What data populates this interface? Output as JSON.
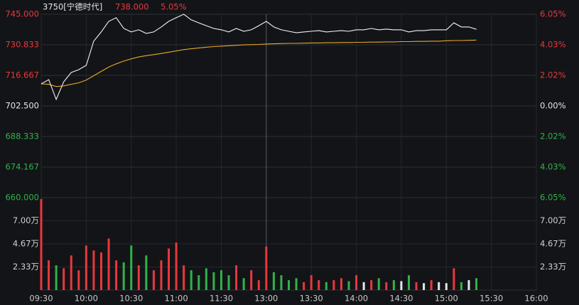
{
  "chart_data": {
    "type": "intraday",
    "title": "3750[宁德时代]",
    "price_text": "738.000",
    "change_text": "5.05%",
    "grid": true,
    "up_color": "#e8383d",
    "down_color": "#2fb34a",
    "flat_color": "#e6e6e6",
    "time_ticks": [
      "09:30",
      "10:00",
      "10:30",
      "11:00",
      "11:30",
      "13:00",
      "13:30",
      "14:00",
      "14:30",
      "15:00",
      "15:30",
      "16:00"
    ],
    "x": [
      "09:30",
      "09:35",
      "09:40",
      "09:45",
      "09:50",
      "09:55",
      "10:00",
      "10:05",
      "10:10",
      "10:15",
      "10:20",
      "10:25",
      "10:30",
      "10:35",
      "10:40",
      "10:45",
      "10:50",
      "10:55",
      "11:00",
      "11:05",
      "11:10",
      "11:15",
      "11:20",
      "11:25",
      "11:30",
      "11:45",
      "12:00",
      "12:15",
      "12:30",
      "12:45",
      "13:00",
      "13:05",
      "13:10",
      "13:15",
      "13:20",
      "13:25",
      "13:30",
      "13:35",
      "13:40",
      "13:45",
      "13:50",
      "13:55",
      "14:00",
      "14:05",
      "14:10",
      "14:15",
      "14:20",
      "14:25",
      "14:30",
      "14:35",
      "14:40",
      "14:45",
      "14:50",
      "14:55",
      "15:00",
      "15:05",
      "15:10",
      "15:15",
      "15:20"
    ],
    "price": {
      "color": "#f2f2f2",
      "values": [
        712.7,
        714.7,
        705.5,
        713.7,
        718.0,
        719.3,
        721.3,
        732.5,
        736.8,
        741.7,
        743.4,
        738.4,
        736.8,
        737.8,
        736.1,
        736.8,
        739.1,
        741.7,
        743.4,
        745.0,
        742.4,
        741.0,
        739.7,
        738.4,
        737.8,
        736.8,
        738.4,
        737.1,
        737.8,
        739.7,
        741.7,
        739.1,
        737.8,
        737.1,
        736.4,
        736.8,
        737.1,
        737.4,
        736.8,
        737.1,
        737.4,
        737.1,
        737.8,
        737.8,
        738.4,
        737.8,
        738.1,
        737.8,
        737.8,
        736.8,
        737.4,
        737.4,
        737.8,
        737.8,
        737.8,
        741.0,
        739.1,
        739.1,
        738.0
      ]
    },
    "average": {
      "color": "#e6a82a",
      "values": [
        712.7,
        712.5,
        711.5,
        711.8,
        712.5,
        713.2,
        714.5,
        716.5,
        718.5,
        720.5,
        722.0,
        723.3,
        724.3,
        725.2,
        725.8,
        726.3,
        726.8,
        727.4,
        728.0,
        728.6,
        729.0,
        729.4,
        729.7,
        730.0,
        730.2,
        730.4,
        730.6,
        730.8,
        730.9,
        731.0,
        731.2,
        731.3,
        731.4,
        731.5,
        731.5,
        731.6,
        731.7,
        731.7,
        731.8,
        731.8,
        731.9,
        731.9,
        732.0,
        732.0,
        732.1,
        732.1,
        732.2,
        732.2,
        732.3,
        732.3,
        732.4,
        732.4,
        732.5,
        732.5,
        732.7,
        732.8,
        732.8,
        732.9,
        733.0
      ]
    },
    "ylim": [
      660,
      745
    ],
    "yticks": [
      {
        "value": 745,
        "label": "745.000"
      },
      {
        "value": 730.833,
        "label": "730.833"
      },
      {
        "value": 716.667,
        "label": "716.667"
      },
      {
        "value": 702.5,
        "label": "702.500"
      },
      {
        "value": 688.333,
        "label": "688.333"
      },
      {
        "value": 674.167,
        "label": "674.167"
      },
      {
        "value": 660,
        "label": "660.000"
      }
    ],
    "y2lim": [
      -6.05,
      6.05
    ],
    "y2ticks": [
      {
        "value": 6.05,
        "label": "6.05%"
      },
      {
        "value": 4.03,
        "label": "4.03%"
      },
      {
        "value": 2.02,
        "label": "2.02%"
      },
      {
        "value": 0,
        "label": "0.00%"
      },
      {
        "value": -2.02,
        "label": "2.02%"
      },
      {
        "value": -4.03,
        "label": "4.03%"
      },
      {
        "value": -6.05,
        "label": "6.05%"
      }
    ],
    "volume": {
      "values": [
        92000,
        30000,
        25000,
        22000,
        35000,
        20000,
        45000,
        40000,
        38000,
        52000,
        30000,
        28000,
        45000,
        25000,
        35000,
        20000,
        30000,
        42000,
        48000,
        25000,
        20000,
        15000,
        22000,
        18000,
        20000,
        15000,
        25000,
        12000,
        20000,
        10000,
        44000,
        18000,
        15000,
        10000,
        12000,
        8000,
        15000,
        10000,
        8000,
        10000,
        12000,
        9000,
        15000,
        8000,
        10000,
        12000,
        8000,
        10000,
        9000,
        15000,
        8000,
        7000,
        10000,
        8000,
        7000,
        22000,
        8000,
        10000,
        12000
      ],
      "ylim": [
        0,
        93333
      ],
      "yticks": [
        {
          "value": 70000,
          "label": "7.00万"
        },
        {
          "value": 46667,
          "label": "4.67万"
        },
        {
          "value": 23333,
          "label": "2.33万"
        }
      ]
    }
  }
}
